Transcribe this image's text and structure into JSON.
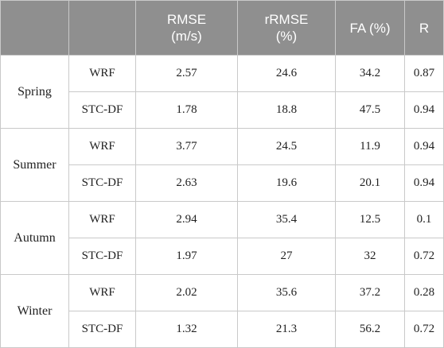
{
  "header": {
    "season": "",
    "model": "",
    "rmse": {
      "line1": "RMSE",
      "line2": "(m/s)"
    },
    "rrmse": {
      "line1": "rRMSE",
      "line2": "(%)"
    },
    "fa": "FA (%)",
    "r": "R"
  },
  "seasons": [
    {
      "name": "Spring",
      "rows": [
        {
          "model": "WRF",
          "rmse": "2.57",
          "rrmse": "24.6",
          "fa": "34.2",
          "r": "0.87"
        },
        {
          "model": "STC-DF",
          "rmse": "1.78",
          "rrmse": "18.8",
          "fa": "47.5",
          "r": "0.94"
        }
      ]
    },
    {
      "name": "Summer",
      "rows": [
        {
          "model": "WRF",
          "rmse": "3.77",
          "rrmse": "24.5",
          "fa": "11.9",
          "r": "0.94"
        },
        {
          "model": "STC-DF",
          "rmse": "2.63",
          "rrmse": "19.6",
          "fa": "20.1",
          "r": "0.94"
        }
      ]
    },
    {
      "name": "Autumn",
      "rows": [
        {
          "model": "WRF",
          "rmse": "2.94",
          "rrmse": "35.4",
          "fa": "12.5",
          "r": "0.1"
        },
        {
          "model": "STC-DF",
          "rmse": "1.97",
          "rrmse": "27",
          "fa": "32",
          "r": "0.72"
        }
      ]
    },
    {
      "name": "Winter",
      "rows": [
        {
          "model": "WRF",
          "rmse": "2.02",
          "rrmse": "35.6",
          "fa": "37.2",
          "r": "0.28"
        },
        {
          "model": "STC-DF",
          "rmse": "1.32",
          "rrmse": "21.3",
          "fa": "56.2",
          "r": "0.72"
        }
      ]
    }
  ]
}
